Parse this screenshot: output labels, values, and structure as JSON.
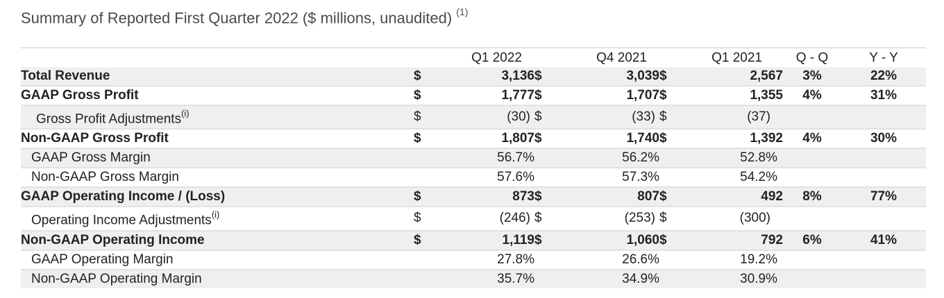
{
  "title": "Summary of Reported First Quarter 2022 ($ millions, unaudited)",
  "title_footnote": "(1)",
  "currency_symbol": "$",
  "columns": {
    "q1_2022": "Q1 2022",
    "q4_2021": "Q4 2021",
    "q1_2021": "Q1 2021",
    "qq": "Q - Q",
    "yy": "Y - Y"
  },
  "footnote_mark": "(i)",
  "rows": [
    {
      "label": "Total Revenue",
      "cur": "$",
      "v1": "3,136",
      "cur2": "$",
      "v2": "3,039",
      "cur3": "$",
      "v3": "2,567",
      "qq": "3%",
      "yy": "22%"
    },
    {
      "label": "GAAP Gross Profit",
      "cur": "$",
      "v1": "1,777",
      "cur2": "$",
      "v2": "1,707",
      "cur3": "$",
      "v3": "1,355",
      "qq": "4%",
      "yy": "31%"
    },
    {
      "label": "Gross Profit Adjustments",
      "cur": "$",
      "v1": "(30)",
      "cur2": "$",
      "v2": "(33)",
      "cur3": "$",
      "v3": "(37)",
      "qq": "",
      "yy": ""
    },
    {
      "label": "Non-GAAP Gross Profit",
      "cur": "$",
      "v1": "1,807",
      "cur2": "$",
      "v2": "1,740",
      "cur3": "$",
      "v3": "1,392",
      "qq": "4%",
      "yy": "30%"
    },
    {
      "label": "GAAP Gross Margin",
      "cur": "",
      "v1": "56.7%",
      "cur2": "",
      "v2": "56.2%",
      "cur3": "",
      "v3": "52.8%",
      "qq": "",
      "yy": ""
    },
    {
      "label": "Non-GAAP Gross Margin",
      "cur": "",
      "v1": "57.6%",
      "cur2": "",
      "v2": "57.3%",
      "cur3": "",
      "v3": "54.2%",
      "qq": "",
      "yy": ""
    },
    {
      "label": "GAAP Operating Income / (Loss)",
      "cur": "$",
      "v1": "873",
      "cur2": "$",
      "v2": "807",
      "cur3": "$",
      "v3": "492",
      "qq": "8%",
      "yy": "77%"
    },
    {
      "label": "Operating Income Adjustments",
      "cur": "$",
      "v1": "(246)",
      "cur2": "$",
      "v2": "(253)",
      "cur3": "$",
      "v3": "(300)",
      "qq": "",
      "yy": ""
    },
    {
      "label": "Non-GAAP Operating Income",
      "cur": "$",
      "v1": "1,119",
      "cur2": "$",
      "v2": "1,060",
      "cur3": "$",
      "v3": "792",
      "qq": "6%",
      "yy": "41%"
    },
    {
      "label": "GAAP Operating Margin",
      "cur": "",
      "v1": "27.8%",
      "cur2": "",
      "v2": "26.6%",
      "cur3": "",
      "v3": "19.2%",
      "qq": "",
      "yy": ""
    },
    {
      "label": "Non-GAAP Operating Margin",
      "cur": "",
      "v1": "35.7%",
      "cur2": "",
      "v2": "34.9%",
      "cur3": "",
      "v3": "30.9%",
      "qq": "",
      "yy": ""
    }
  ]
}
